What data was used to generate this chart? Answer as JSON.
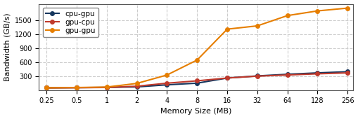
{
  "x": [
    0.25,
    0.5,
    1,
    2,
    4,
    8,
    16,
    32,
    64,
    128,
    256
  ],
  "cpu_gpu": [
    55,
    60,
    65,
    75,
    120,
    155,
    265,
    310,
    345,
    375,
    400
  ],
  "gpu_cpu": [
    55,
    58,
    63,
    90,
    155,
    205,
    265,
    305,
    330,
    355,
    375
  ],
  "gpu_gpu": [
    55,
    62,
    72,
    150,
    330,
    650,
    1310,
    1380,
    1600,
    1700,
    1760
  ],
  "colors": {
    "cpu_gpu": "#17375e",
    "gpu_cpu": "#c0392b",
    "gpu_gpu": "#e67e00"
  },
  "xlabel": "Memory Size (MB)",
  "ylabel": "Bandwidth (GB/s)",
  "legend_labels": [
    "cpu-gpu",
    "gpu-cpu",
    "gpu-gpu"
  ],
  "yticks": [
    300,
    600,
    900,
    1200,
    1500
  ],
  "ylim": [
    0,
    1850
  ],
  "xlim_min": 0.21,
  "xlim_max": 290,
  "xtick_labels": [
    "0.25",
    "0.5",
    "1",
    "2",
    "4",
    "8",
    "16",
    "32",
    "64",
    "128",
    "256"
  ],
  "background_color": "#ffffff",
  "grid_color": "#cccccc",
  "marker_size": 4,
  "line_width": 1.5,
  "tick_fontsize": 7,
  "label_fontsize": 8,
  "legend_fontsize": 7.5
}
